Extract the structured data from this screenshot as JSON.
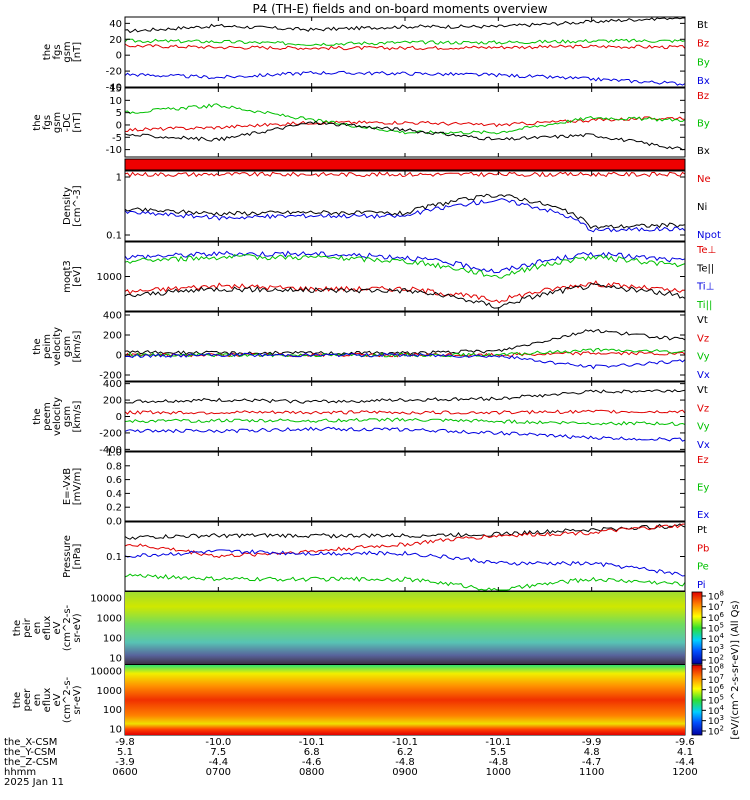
{
  "title": "P4 (TH-E) fields and on-board moments overview",
  "colorbar_unit": "[eV/(cm^2-s-sr-eV)] (All Qs)",
  "footer": {
    "row_labels": [
      "the_X-CSM",
      "the_Y-CSM",
      "the_Z-CSM",
      "hhmm",
      "2025 Jan 11"
    ],
    "columns": [
      {
        "x": "-9.8",
        "y": "5.1",
        "z": "-3.9",
        "t": "0600"
      },
      {
        "x": "-10.0",
        "y": "7.5",
        "z": "-4.4",
        "t": "0700"
      },
      {
        "x": "-10.1",
        "y": "6.8",
        "z": "-4.6",
        "t": "0800"
      },
      {
        "x": "-10.1",
        "y": "6.2",
        "z": "-4.8",
        "t": "0900"
      },
      {
        "x": "-10.1",
        "y": "5.5",
        "z": "-4.8",
        "t": "1000"
      },
      {
        "x": "-9.9",
        "y": "4.8",
        "z": "-4.7",
        "t": "1100"
      },
      {
        "x": "-9.6",
        "y": "4.1",
        "z": "-4.4",
        "t": "1200"
      }
    ]
  },
  "chart_data": [
    {
      "type": "line",
      "ylabel": [
        "the",
        "fgs",
        "gsm",
        "[nT]"
      ],
      "yticks": [
        "40",
        "20",
        "0",
        "-20",
        "-40"
      ],
      "ylim": [
        -40,
        48
      ],
      "legend": [
        {
          "name": "Bt",
          "color": "#000000"
        },
        {
          "name": "Bz",
          "color": "#e00000"
        },
        {
          "name": "By",
          "color": "#00c000"
        },
        {
          "name": "Bx",
          "color": "#0000e0"
        }
      ],
      "x_hours": [
        6,
        7,
        8,
        9,
        10,
        11,
        12
      ],
      "series": [
        {
          "name": "Bt",
          "values": [
            30,
            37,
            32,
            36,
            36,
            42,
            48
          ]
        },
        {
          "name": "Bz",
          "values": [
            12,
            10,
            9,
            9,
            10,
            11,
            10
          ]
        },
        {
          "name": "By",
          "values": [
            18,
            17,
            14,
            16,
            16,
            18,
            18
          ]
        },
        {
          "name": "Bx",
          "values": [
            -24,
            -28,
            -22,
            -23,
            -25,
            -30,
            -36
          ]
        }
      ]
    },
    {
      "type": "line",
      "ylabel": [
        "the",
        "fgs",
        "gsm",
        "-DC",
        "[nT]"
      ],
      "yticks": [
        "15",
        "10",
        "5",
        "0",
        "-5",
        "-10"
      ],
      "ylim": [
        -13,
        15
      ],
      "legend": [
        {
          "name": "Bz",
          "color": "#e00000"
        },
        {
          "name": "By",
          "color": "#00c000"
        },
        {
          "name": "Bx",
          "color": "#000000"
        }
      ],
      "x_hours": [
        6,
        7,
        8,
        9,
        10,
        11,
        12
      ],
      "series": [
        {
          "name": "Bz",
          "values": [
            -2,
            -1,
            1,
            1,
            0,
            2,
            3
          ]
        },
        {
          "name": "By",
          "values": [
            5,
            8,
            2,
            -3,
            -3,
            3,
            2
          ]
        },
        {
          "name": "Bx",
          "values": [
            -4,
            -6,
            1,
            -2,
            -6,
            -4,
            -10
          ]
        }
      ]
    },
    {
      "type": "bar",
      "note": "solid red flag strip",
      "color": "#ee0000"
    },
    {
      "type": "line",
      "ylabel": [
        "Density",
        "[cm^-3]"
      ],
      "yticks": [
        "1",
        "0.1"
      ],
      "scale": "log",
      "legend": [
        {
          "name": "Ne",
          "color": "#e00000"
        },
        {
          "name": "Ni",
          "color": "#000000"
        },
        {
          "name": "Npot",
          "color": "#0000e0"
        }
      ],
      "x_hours": [
        6,
        7,
        8,
        9,
        10,
        11,
        12
      ],
      "series": [
        {
          "name": "Ne",
          "values": [
            2.5,
            2.5,
            2.5,
            2.5,
            2.5,
            2.5,
            2.5
          ]
        },
        {
          "name": "Ni",
          "values": [
            0.35,
            0.28,
            0.3,
            0.28,
            0.8,
            0.13,
            0.15
          ]
        },
        {
          "name": "Npot",
          "values": [
            0.3,
            0.22,
            0.25,
            0.24,
            0.6,
            0.11,
            0.12
          ]
        }
      ]
    },
    {
      "type": "line",
      "ylabel": [
        "moqt3",
        "[eV]"
      ],
      "yticks": [
        "1000"
      ],
      "scale": "log",
      "legend": [
        {
          "name": "Te⊥",
          "color": "#e00000"
        },
        {
          "name": "Te||",
          "color": "#000000"
        },
        {
          "name": "Ti⊥",
          "color": "#0000e0"
        },
        {
          "name": "Ti||",
          "color": "#00c000"
        }
      ],
      "x_hours": [
        6,
        7,
        8,
        9,
        10,
        11,
        12
      ],
      "series": [
        {
          "name": "Te⊥",
          "values": [
            600,
            800,
            700,
            700,
            400,
            900,
            600
          ]
        },
        {
          "name": "Te||",
          "values": [
            500,
            700,
            650,
            650,
            300,
            800,
            500
          ]
        },
        {
          "name": "Ti⊥",
          "values": [
            3000,
            3500,
            3500,
            3000,
            1500,
            3500,
            2500
          ]
        },
        {
          "name": "Ti||",
          "values": [
            2500,
            3000,
            3000,
            2500,
            1200,
            3000,
            2000
          ]
        }
      ]
    },
    {
      "type": "line",
      "ylabel": [
        "the",
        "peim",
        "velocity",
        "gsm",
        "[km/s]"
      ],
      "yticks": [
        "400",
        "200",
        "0",
        "-200"
      ],
      "ylim": [
        -260,
        430
      ],
      "legend": [
        {
          "name": "Vt",
          "color": "#000000"
        },
        {
          "name": "Vz",
          "color": "#e00000"
        },
        {
          "name": "Vy",
          "color": "#00c000"
        },
        {
          "name": "Vx",
          "color": "#0000e0"
        }
      ],
      "x_hours": [
        6,
        7,
        8,
        9,
        10,
        11,
        12
      ],
      "series": [
        {
          "name": "Vt",
          "values": [
            30,
            20,
            20,
            20,
            40,
            250,
            150
          ]
        },
        {
          "name": "Vz",
          "values": [
            0,
            0,
            0,
            0,
            0,
            20,
            10
          ]
        },
        {
          "name": "Vy",
          "values": [
            0,
            0,
            0,
            0,
            0,
            50,
            30
          ]
        },
        {
          "name": "Vx",
          "values": [
            -10,
            0,
            0,
            0,
            -10,
            -120,
            -60
          ]
        }
      ]
    },
    {
      "type": "line",
      "ylabel": [
        "the",
        "peem",
        "velocity",
        "gsm",
        "[km/s]"
      ],
      "yticks": [
        "400",
        "200",
        "0",
        "-200",
        "-400"
      ],
      "ylim": [
        -420,
        420
      ],
      "legend": [
        {
          "name": "Vt",
          "color": "#000000"
        },
        {
          "name": "Vz",
          "color": "#e00000"
        },
        {
          "name": "Vy",
          "color": "#00c000"
        },
        {
          "name": "Vx",
          "color": "#0000e0"
        }
      ],
      "x_hours": [
        6,
        7,
        8,
        9,
        10,
        11,
        12
      ],
      "series": [
        {
          "name": "Vt",
          "values": [
            180,
            200,
            180,
            200,
            220,
            300,
            320
          ]
        },
        {
          "name": "Vz",
          "values": [
            50,
            50,
            50,
            50,
            50,
            60,
            60
          ]
        },
        {
          "name": "Vy",
          "values": [
            -60,
            -50,
            -50,
            -40,
            -60,
            -80,
            -90
          ]
        },
        {
          "name": "Vx",
          "values": [
            -170,
            -180,
            -150,
            -160,
            -200,
            -260,
            -280
          ]
        }
      ]
    },
    {
      "type": "line",
      "ylabel": [
        "E=-VxB",
        "[mV/m]"
      ],
      "yticks": [
        "1.0",
        "0.8",
        "0.6",
        "0.4",
        "0.2",
        "0.0"
      ],
      "ylim": [
        0,
        1
      ],
      "legend": [
        {
          "name": "Ez",
          "color": "#e00000"
        },
        {
          "name": "Ey",
          "color": "#00c000"
        },
        {
          "name": "Ex",
          "color": "#0000e0"
        }
      ],
      "series": []
    },
    {
      "type": "line",
      "ylabel": [
        "Pressure",
        "[nPa]"
      ],
      "yticks": [
        "0.1"
      ],
      "scale": "log",
      "legend": [
        {
          "name": "Pt",
          "color": "#000000"
        },
        {
          "name": "Pb",
          "color": "#e00000"
        },
        {
          "name": "Pe",
          "color": "#00c000"
        },
        {
          "name": "Pi",
          "color": "#0000e0"
        }
      ],
      "x_hours": [
        6,
        7,
        8,
        9,
        10,
        11,
        12
      ],
      "series": [
        {
          "name": "Pt",
          "values": [
            0.45,
            0.5,
            0.5,
            0.5,
            0.55,
            0.7,
            0.9
          ]
        },
        {
          "name": "Pb",
          "values": [
            0.3,
            0.15,
            0.2,
            0.3,
            0.5,
            0.6,
            0.9
          ]
        },
        {
          "name": "Pe",
          "values": [
            0.05,
            0.04,
            0.04,
            0.04,
            0.02,
            0.04,
            0.03
          ]
        },
        {
          "name": "Pi",
          "values": [
            0.15,
            0.2,
            0.18,
            0.18,
            0.1,
            0.1,
            0.05
          ]
        }
      ]
    },
    {
      "type": "heatmap",
      "ylabel": [
        "the",
        "peir",
        "en",
        "eflux",
        "eV",
        "(cm^2-s-",
        "sr-eV)"
      ],
      "yticks": [
        "10000",
        "1000",
        "100",
        "10"
      ],
      "scale": "log"
    },
    {
      "type": "heatmap",
      "ylabel": [
        "the",
        "peer",
        "en",
        "eflux",
        "eV",
        "(cm^2-s-",
        "sr-eV)"
      ],
      "yticks": [
        "10000",
        "1000",
        "100",
        "10"
      ],
      "scale": "log"
    }
  ],
  "colorbar_ticks_upper": [
    "10^8",
    "10^7",
    "10^6",
    "10^5",
    "10^4",
    "10^3",
    "10^2"
  ],
  "colorbar_ticks_lower": [
    "10^8",
    "10^7",
    "10^6",
    "10^5",
    "10^4",
    "10^3",
    "10^2"
  ]
}
